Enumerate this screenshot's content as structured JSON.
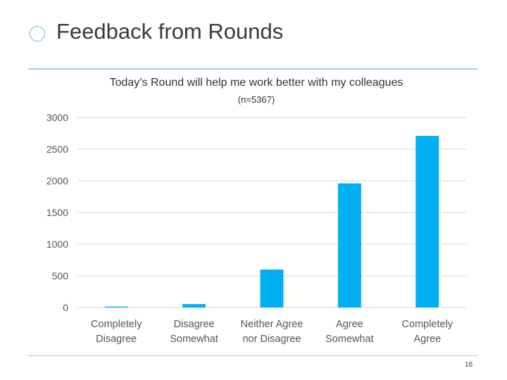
{
  "slide": {
    "title": "Feedback from Rounds",
    "page_number": "16"
  },
  "colors": {
    "bar": "#00b0f0",
    "grid": "#d9d9d9",
    "accent": "#9ccfe0"
  },
  "chart_data": {
    "type": "bar",
    "title": "Today’s Round will help me work better with my colleagues",
    "title_suffix": "(n=5367)",
    "categories": [
      [
        "Completely",
        "Disagree"
      ],
      [
        "Disagree",
        "Somewhat"
      ],
      [
        "Neither Agree",
        "nor Disagree"
      ],
      [
        "Agree",
        "Somewhat"
      ],
      [
        "Completely",
        "Agree"
      ]
    ],
    "values": [
      15,
      55,
      600,
      1960,
      2710
    ],
    "yticks": [
      "0",
      "500",
      "1000",
      "1500",
      "2000",
      "2500",
      "3000"
    ],
    "ylim": [
      0,
      3000
    ],
    "grid": true,
    "legend": "none"
  }
}
